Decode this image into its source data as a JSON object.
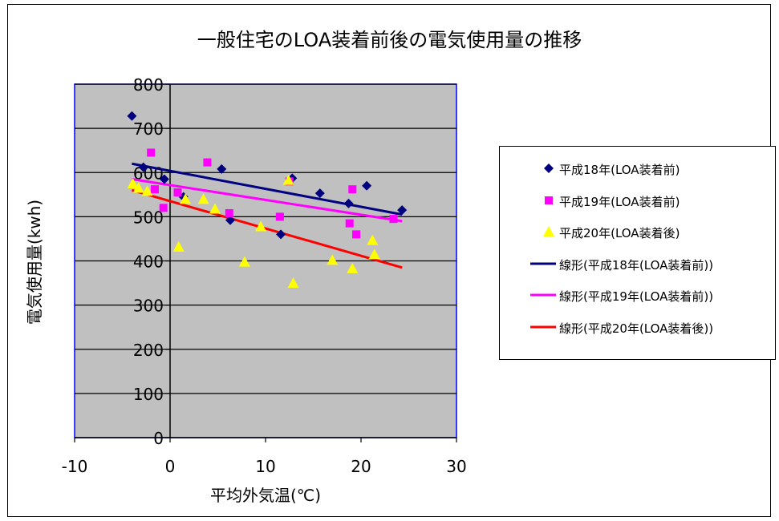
{
  "chart_data": {
    "type": "scatter",
    "title": "一般住宅のLOA装着前後の電気使用量の推移",
    "xlabel": "平均外気温(℃)",
    "ylabel": "電気使用量(kwh)",
    "xlim": [
      -10,
      30
    ],
    "ylim": [
      0,
      800
    ],
    "xticks": [
      -10,
      0,
      10,
      20,
      30
    ],
    "yticks": [
      0,
      100,
      200,
      300,
      400,
      500,
      600,
      700,
      800
    ],
    "grid": true,
    "plot_background": "#c0c0c0",
    "legend_position": "right",
    "series": [
      {
        "name": "平成18年(LOA装着前)",
        "marker": "diamond",
        "color": "#000080",
        "points": [
          [
            -4,
            728
          ],
          [
            -2.8,
            612
          ],
          [
            -0.6,
            585
          ],
          [
            1.4,
            545
          ],
          [
            5.4,
            608
          ],
          [
            6.3,
            492
          ],
          [
            11.6,
            460
          ],
          [
            12.8,
            587
          ],
          [
            15.7,
            553
          ],
          [
            18.7,
            530
          ],
          [
            20.6,
            570
          ],
          [
            24.3,
            515
          ]
        ]
      },
      {
        "name": "平成19年(LOA装着前)",
        "marker": "square",
        "color": "#ff00ff",
        "points": [
          [
            -2,
            645
          ],
          [
            -1.6,
            562
          ],
          [
            -0.7,
            520
          ],
          [
            0.8,
            555
          ],
          [
            3.9,
            623
          ],
          [
            6.2,
            508
          ],
          [
            11.5,
            500
          ],
          [
            12.5,
            580
          ],
          [
            18.8,
            485
          ],
          [
            19.1,
            562
          ],
          [
            19.5,
            460
          ],
          [
            23.4,
            495
          ]
        ]
      },
      {
        "name": "平成20年(LOA装着後)",
        "marker": "triangle",
        "color": "#ffff00",
        "points": [
          [
            -3.9,
            575
          ],
          [
            -3.3,
            565
          ],
          [
            -2.4,
            558
          ],
          [
            0.9,
            432
          ],
          [
            1.6,
            540
          ],
          [
            3.5,
            540
          ],
          [
            4.7,
            518
          ],
          [
            7.8,
            398
          ],
          [
            9.5,
            478
          ],
          [
            12.4,
            583
          ],
          [
            12.9,
            350
          ],
          [
            17,
            402
          ],
          [
            19.1,
            383
          ],
          [
            21.2,
            447
          ],
          [
            21.4,
            415
          ]
        ]
      }
    ],
    "trendlines": [
      {
        "name": "線形(平成18年(LOA装着前))",
        "color": "#000080",
        "from": [
          -4,
          620
        ],
        "to": [
          24.3,
          505
        ]
      },
      {
        "name": "線形(平成19年(LOA装着前))",
        "color": "#ff00ff",
        "from": [
          -4,
          585
        ],
        "to": [
          24.3,
          490
        ]
      },
      {
        "name": "線形(平成20年(LOA装着後))",
        "color": "#ff0000",
        "from": [
          -4,
          560
        ],
        "to": [
          24.3,
          385
        ]
      }
    ]
  }
}
